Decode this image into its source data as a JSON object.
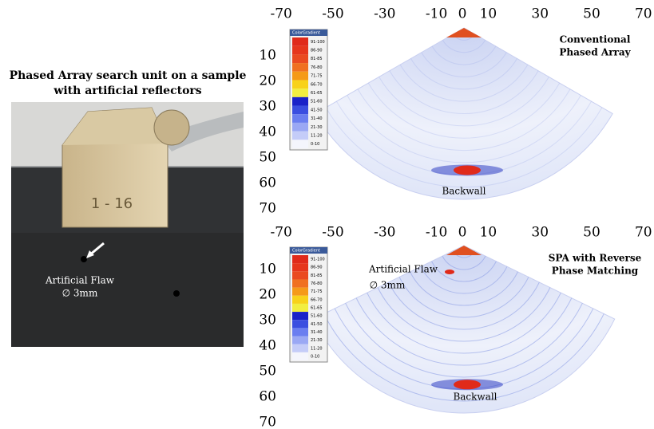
{
  "photo": {
    "caption": [
      "Phased Array search unit on a sample",
      "with artificial reflectors"
    ],
    "probe_label": "1 - 16",
    "flaw_label": "Artificial Flaw",
    "flaw_size": "∅ 3mm"
  },
  "panels": [
    {
      "title": [
        "Conventional",
        "Phased Array"
      ],
      "xticks": [
        -70,
        -50,
        -30,
        -10,
        0,
        10,
        30,
        50,
        70
      ],
      "yticks": [
        10,
        20,
        30,
        40,
        50,
        60,
        70
      ],
      "annotations": [
        "Backwall"
      ],
      "scale": {
        "title": "ColorGradient",
        "labels": [
          "91-100",
          "86-90",
          "81-85",
          "76-80",
          "71-75",
          "66-70",
          "61-65",
          "51-60",
          "41-50",
          "31-40",
          "21-30",
          "11-20",
          "0-10"
        ]
      }
    },
    {
      "title": [
        "SPA with Reverse",
        "Phase Matching"
      ],
      "xticks": [
        -70,
        -50,
        -30,
        -10,
        0,
        10,
        30,
        50,
        70
      ],
      "yticks": [
        10,
        20,
        30,
        40,
        50,
        60,
        70
      ],
      "annotations": [
        "Artificial Flaw",
        "∅ 3mm",
        "Backwall"
      ],
      "scale": {
        "title": "ColorGradient",
        "labels": [
          "91-100",
          "86-90",
          "81-85",
          "76-80",
          "71-75",
          "66-70",
          "61-65",
          "51-60",
          "41-50",
          "31-40",
          "21-30",
          "11-20",
          "0-10"
        ]
      }
    }
  ]
}
